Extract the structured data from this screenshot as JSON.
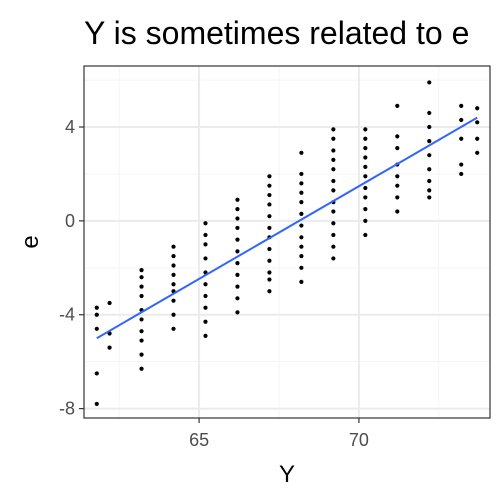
{
  "chart_data": {
    "type": "scatter",
    "title": "Y is sometimes related to e",
    "xlabel": "Y",
    "ylabel": "e",
    "xlim": [
      61.4,
      74.1
    ],
    "ylim": [
      -8.4,
      6.6
    ],
    "x_ticks": [
      65,
      70
    ],
    "y_ticks": [
      -8,
      -4,
      0,
      4
    ],
    "grid": true,
    "legend": "none",
    "colors": {
      "points": "#000000",
      "fit_line": "#3366ff",
      "panel_border": "#333333",
      "grid_major": "#ebebeb",
      "grid_minor": "#f5f5f5"
    },
    "series": [
      {
        "type": "scatter",
        "points": [
          [
            61.8,
            -3.7
          ],
          [
            61.8,
            -4.0
          ],
          [
            61.8,
            -4.6
          ],
          [
            61.8,
            -6.5
          ],
          [
            61.8,
            -7.8
          ],
          [
            62.2,
            -3.5
          ],
          [
            62.2,
            -4.8
          ],
          [
            62.2,
            -5.4
          ],
          [
            63.2,
            -2.1
          ],
          [
            63.2,
            -2.4
          ],
          [
            63.2,
            -2.8
          ],
          [
            63.2,
            -3.2
          ],
          [
            63.2,
            -3.8
          ],
          [
            63.2,
            -4.2
          ],
          [
            63.2,
            -4.7
          ],
          [
            63.2,
            -5.1
          ],
          [
            63.2,
            -5.7
          ],
          [
            63.2,
            -6.3
          ],
          [
            64.2,
            -1.1
          ],
          [
            64.2,
            -1.5
          ],
          [
            64.2,
            -1.9
          ],
          [
            64.2,
            -2.3
          ],
          [
            64.2,
            -2.7
          ],
          [
            64.2,
            -3.0
          ],
          [
            64.2,
            -3.4
          ],
          [
            64.2,
            -4.0
          ],
          [
            64.2,
            -4.6
          ],
          [
            65.2,
            -0.1
          ],
          [
            65.2,
            -0.6
          ],
          [
            65.2,
            -1.0
          ],
          [
            65.2,
            -1.6
          ],
          [
            65.2,
            -2.2
          ],
          [
            65.2,
            -2.7
          ],
          [
            65.2,
            -3.2
          ],
          [
            65.2,
            -3.7
          ],
          [
            65.2,
            -4.3
          ],
          [
            65.2,
            -4.9
          ],
          [
            66.2,
            0.9
          ],
          [
            66.2,
            0.5
          ],
          [
            66.2,
            0.1
          ],
          [
            66.2,
            -0.3
          ],
          [
            66.2,
            -0.8
          ],
          [
            66.2,
            -1.3
          ],
          [
            66.2,
            -1.8
          ],
          [
            66.2,
            -2.3
          ],
          [
            66.2,
            -2.8
          ],
          [
            66.2,
            -3.3
          ],
          [
            66.2,
            -3.9
          ],
          [
            67.2,
            1.9
          ],
          [
            67.2,
            1.5
          ],
          [
            67.2,
            1.1
          ],
          [
            67.2,
            0.7
          ],
          [
            67.2,
            0.2
          ],
          [
            67.2,
            -0.3
          ],
          [
            67.2,
            -0.7
          ],
          [
            67.2,
            -1.2
          ],
          [
            67.2,
            -1.7
          ],
          [
            67.2,
            -2.2
          ],
          [
            67.2,
            -2.5
          ],
          [
            67.2,
            -3.0
          ],
          [
            68.2,
            2.9
          ],
          [
            68.2,
            2.0
          ],
          [
            68.2,
            1.6
          ],
          [
            68.2,
            1.2
          ],
          [
            68.2,
            0.8
          ],
          [
            68.2,
            0.3
          ],
          [
            68.2,
            -0.2
          ],
          [
            68.2,
            -0.7
          ],
          [
            68.2,
            -1.1
          ],
          [
            68.2,
            -1.5
          ],
          [
            68.2,
            -2.0
          ],
          [
            68.2,
            -2.6
          ],
          [
            69.2,
            3.9
          ],
          [
            69.2,
            3.5
          ],
          [
            69.2,
            3.0
          ],
          [
            69.2,
            2.6
          ],
          [
            69.2,
            2.2
          ],
          [
            69.2,
            1.7
          ],
          [
            69.2,
            1.3
          ],
          [
            69.2,
            0.8
          ],
          [
            69.2,
            0.4
          ],
          [
            69.2,
            -0.1
          ],
          [
            69.2,
            -0.6
          ],
          [
            69.2,
            -1.1
          ],
          [
            69.2,
            -1.6
          ],
          [
            70.2,
            3.9
          ],
          [
            70.2,
            3.5
          ],
          [
            70.2,
            3.1
          ],
          [
            70.2,
            2.7
          ],
          [
            70.2,
            2.3
          ],
          [
            70.2,
            1.9
          ],
          [
            70.2,
            1.4
          ],
          [
            70.2,
            1.0
          ],
          [
            70.2,
            0.5
          ],
          [
            70.2,
            0.0
          ],
          [
            70.2,
            -0.6
          ],
          [
            71.2,
            4.9
          ],
          [
            71.2,
            3.6
          ],
          [
            71.2,
            3.1
          ],
          [
            71.2,
            2.4
          ],
          [
            71.2,
            1.9
          ],
          [
            71.2,
            1.5
          ],
          [
            71.2,
            1.0
          ],
          [
            71.2,
            0.4
          ],
          [
            72.2,
            5.9
          ],
          [
            72.2,
            4.6
          ],
          [
            72.2,
            4.0
          ],
          [
            72.2,
            3.4
          ],
          [
            72.2,
            2.8
          ],
          [
            72.2,
            2.2
          ],
          [
            72.2,
            1.7
          ],
          [
            72.2,
            1.3
          ],
          [
            72.2,
            1.0
          ],
          [
            73.2,
            4.9
          ],
          [
            73.2,
            4.3
          ],
          [
            73.2,
            3.5
          ],
          [
            73.2,
            2.4
          ],
          [
            73.2,
            2.0
          ],
          [
            73.7,
            4.8
          ],
          [
            73.7,
            4.2
          ],
          [
            73.7,
            3.5
          ],
          [
            73.7,
            2.9
          ]
        ]
      },
      {
        "type": "line",
        "points": [
          [
            61.8,
            -5.0
          ],
          [
            73.7,
            4.4
          ]
        ]
      }
    ]
  }
}
